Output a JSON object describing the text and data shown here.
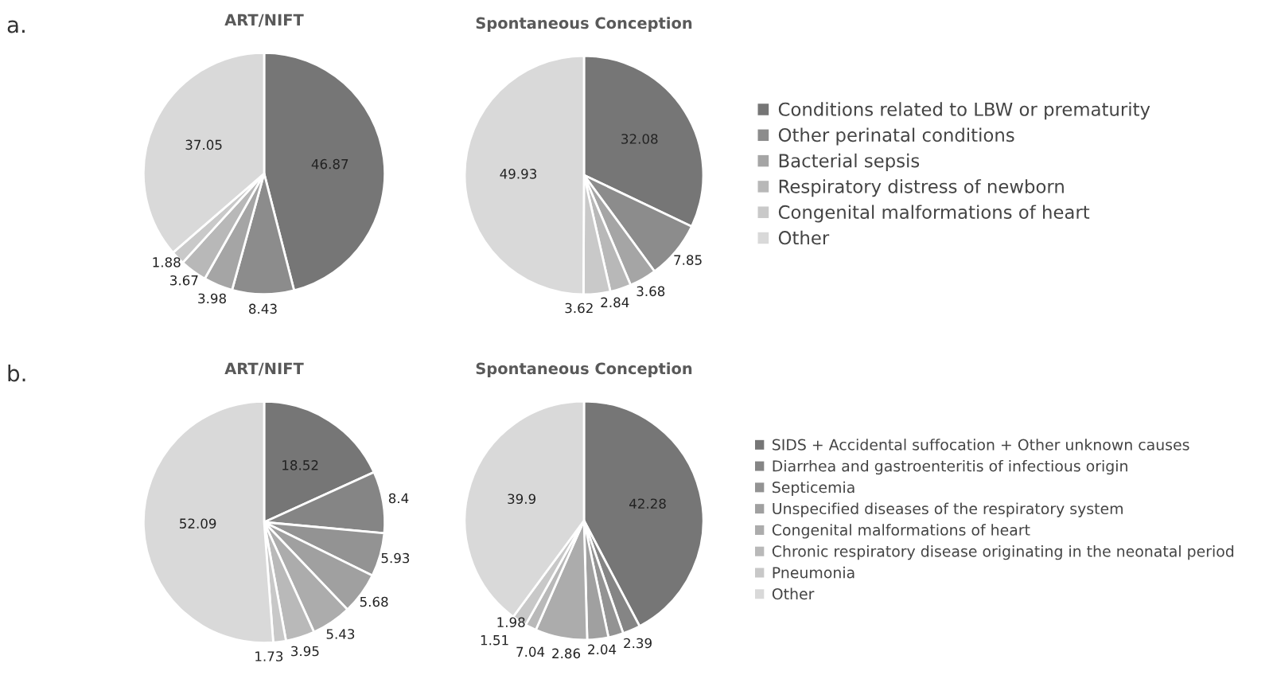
{
  "chart_data": [
    {
      "type": "pie",
      "annotations": [
        "a."
      ],
      "legend": "right",
      "data_labels": true,
      "categories": [
        "Conditions related to LBW or prematurity",
        "Other perinatal conditions",
        "Bacterial sepsis",
        "Respiratory distress of newborn",
        "Congenital malformations of heart",
        "Other"
      ],
      "colors": [
        "#767676",
        "#8c8c8c",
        "#a5a5a5",
        "#b8b8b8",
        "#c9c9c9",
        "#d9d9d9"
      ],
      "series": [
        {
          "name": "ART/NIFT",
          "values": [
            46.87,
            8.43,
            3.98,
            3.67,
            1.88,
            37.05
          ]
        },
        {
          "name": "Spontaneous Conception",
          "values": [
            32.08,
            7.85,
            3.68,
            2.84,
            3.62,
            49.93
          ]
        }
      ]
    },
    {
      "type": "pie",
      "annotations": [
        "b."
      ],
      "legend": "right",
      "data_labels": true,
      "categories": [
        "SIDS + Accidental suffocation + Other unknown causes",
        "Diarrhea and gastroenteritis of infectious origin",
        "Septicemia",
        "Unspecified diseases of the respiratory system",
        "Congenital malformations of heart",
        "Chronic respiratory disease originating in the neonatal period",
        "Pneumonia",
        "Other"
      ],
      "colors": [
        "#767676",
        "#858585",
        "#939393",
        "#a0a0a0",
        "#acacac",
        "#b9b9b9",
        "#c8c8c8",
        "#d9d9d9"
      ],
      "series": [
        {
          "name": "ART/NIFT",
          "values": [
            18.52,
            8.4,
            5.93,
            5.68,
            5.43,
            3.95,
            1.73,
            52.09
          ]
        },
        {
          "name": "Spontaneous Conception",
          "values": [
            42.28,
            2.39,
            2.04,
            2.86,
            7.04,
            1.51,
            1.98,
            39.9
          ]
        }
      ]
    }
  ]
}
